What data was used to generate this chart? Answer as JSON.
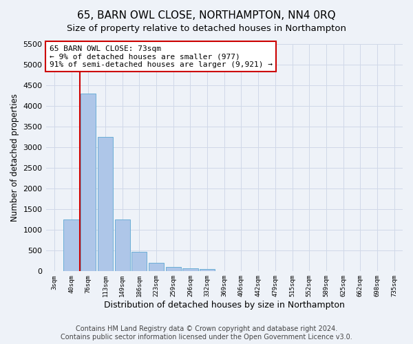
{
  "title": "65, BARN OWL CLOSE, NORTHAMPTON, NN4 0RQ",
  "subtitle": "Size of property relative to detached houses in Northampton",
  "xlabel": "Distribution of detached houses by size in Northampton",
  "ylabel": "Number of detached properties",
  "bar_labels": [
    "3sqm",
    "40sqm",
    "76sqm",
    "113sqm",
    "149sqm",
    "186sqm",
    "223sqm",
    "259sqm",
    "296sqm",
    "332sqm",
    "369sqm",
    "406sqm",
    "442sqm",
    "479sqm",
    "515sqm",
    "552sqm",
    "589sqm",
    "625sqm",
    "662sqm",
    "698sqm",
    "735sqm"
  ],
  "bar_values": [
    0,
    1250,
    4300,
    3250,
    1250,
    475,
    200,
    100,
    75,
    50,
    0,
    0,
    0,
    0,
    0,
    0,
    0,
    0,
    0,
    0,
    0
  ],
  "bar_color": "#aec6e8",
  "bar_edge_color": "#6baed6",
  "grid_color": "#d0d8e8",
  "background_color": "#eef2f8",
  "property_line_x": 1.5,
  "property_line_color": "#cc0000",
  "annotation_text": "65 BARN OWL CLOSE: 73sqm\n← 9% of detached houses are smaller (977)\n91% of semi-detached houses are larger (9,921) →",
  "annotation_box_color": "#ffffff",
  "annotation_box_edge_color": "#cc0000",
  "ylim": [
    0,
    5500
  ],
  "yticks": [
    0,
    500,
    1000,
    1500,
    2000,
    2500,
    3000,
    3500,
    4000,
    4500,
    5000,
    5500
  ],
  "footer_text": "Contains HM Land Registry data © Crown copyright and database right 2024.\nContains public sector information licensed under the Open Government Licence v3.0.",
  "title_fontsize": 11,
  "subtitle_fontsize": 9.5,
  "annotation_fontsize": 8,
  "footer_fontsize": 7
}
